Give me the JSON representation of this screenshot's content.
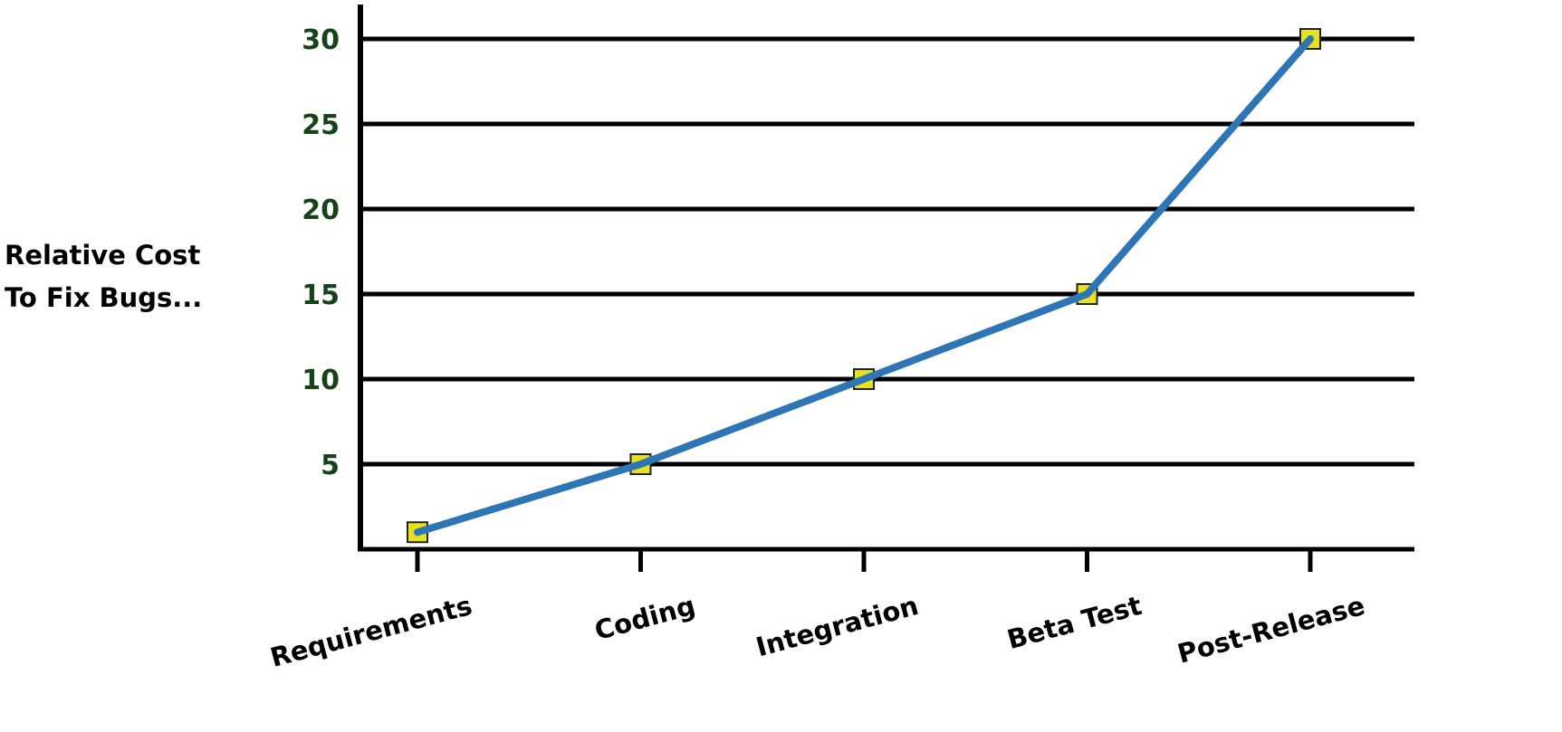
{
  "chart_data": {
    "type": "line",
    "title": "",
    "xlabel": "",
    "ylabel": [
      "Relative Cost",
      "To Fix Bugs..."
    ],
    "categories": [
      "Requirements",
      "Coding",
      "Integration",
      "Beta Test",
      "Post-Release"
    ],
    "series": [
      {
        "values": [
          1,
          5,
          10,
          15,
          30
        ]
      }
    ],
    "ylim": [
      0,
      30
    ],
    "yticks": [
      5,
      10,
      15,
      20,
      25,
      30
    ],
    "grid": true,
    "legend": "none",
    "colors": {
      "line": "#2e75b6",
      "marker": "#e8e21c",
      "tick_label": "#17421a",
      "axis": "#000000"
    }
  }
}
